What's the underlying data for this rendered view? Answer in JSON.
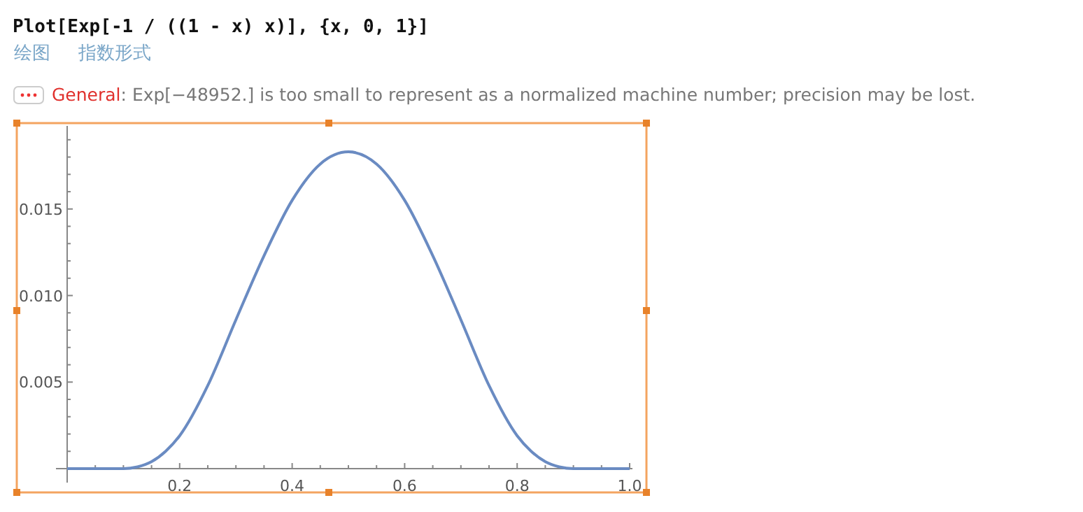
{
  "chart_data": {
    "type": "line",
    "title": "Plot[Exp[-1 / ((1 - x) x)], {x, 0, 1}]",
    "annotations": [
      "绘图",
      "指数形式",
      "General: Exp[−48952.] is too small to represent as a normalized machine number; precision may be lost."
    ],
    "x": [
      0,
      0.05,
      0.1,
      0.125,
      0.15,
      0.175,
      0.2,
      0.25,
      0.3,
      0.35,
      0.4,
      0.45,
      0.5,
      0.55,
      0.6,
      0.65,
      0.7,
      0.75,
      0.8,
      0.825,
      0.85,
      0.875,
      0.9,
      0.95,
      1
    ],
    "series": [
      {
        "color": "#6a8bc2",
        "values": [
          0,
          0,
          0,
          0.0001,
          0.0004,
          0.001,
          0.0019,
          0.0048,
          0.0086,
          0.0123,
          0.0155,
          0.0176,
          0.0183,
          0.0176,
          0.0155,
          0.0123,
          0.0086,
          0.0048,
          0.0019,
          0.001,
          0.0004,
          0.0001,
          0,
          0,
          0
        ]
      }
    ],
    "xlim": [
      0,
      1
    ],
    "ylim": [
      0,
      0.0198
    ],
    "xticks": [
      {
        "value": 0.05,
        "label": null
      },
      {
        "value": 0.1,
        "label": null
      },
      {
        "value": 0.15,
        "label": null
      },
      0.2,
      {
        "value": 0.25,
        "label": null
      },
      {
        "value": 0.3,
        "label": null
      },
      {
        "value": 0.35,
        "label": null
      },
      0.4,
      {
        "value": 0.45,
        "label": null
      },
      {
        "value": 0.5,
        "label": null
      },
      {
        "value": 0.55,
        "label": null
      },
      0.6,
      {
        "value": 0.65,
        "label": null
      },
      {
        "value": 0.7,
        "label": null
      },
      {
        "value": 0.75,
        "label": null
      },
      0.8,
      {
        "value": 0.85,
        "label": null
      },
      {
        "value": 0.9,
        "label": null
      },
      {
        "value": 0.95,
        "label": null
      },
      {
        "value": 1,
        "label": "1.0"
      }
    ],
    "yticks": [
      {
        "value": 0.001,
        "label": null
      },
      {
        "value": 0.002,
        "label": null
      },
      {
        "value": 0.003,
        "label": null
      },
      {
        "value": 0.004,
        "label": null
      },
      {
        "value": 0.005,
        "label": "0.005"
      },
      {
        "value": 0.006,
        "label": null
      },
      {
        "value": 0.007,
        "label": null
      },
      {
        "value": 0.008,
        "label": null
      },
      {
        "value": 0.009,
        "label": null
      },
      {
        "value": 0.01,
        "label": "0.010"
      },
      {
        "value": 0.011,
        "label": null
      },
      {
        "value": 0.012,
        "label": null
      },
      {
        "value": 0.013,
        "label": null
      },
      {
        "value": 0.014,
        "label": null
      },
      {
        "value": 0.015,
        "label": "0.015"
      },
      {
        "value": 0.016,
        "label": null
      },
      {
        "value": 0.017,
        "label": null
      },
      {
        "value": 0.018,
        "label": null
      },
      {
        "value": 0.019,
        "label": null
      }
    ],
    "line_style": "solid",
    "marker": "none",
    "grid": false
  }
}
